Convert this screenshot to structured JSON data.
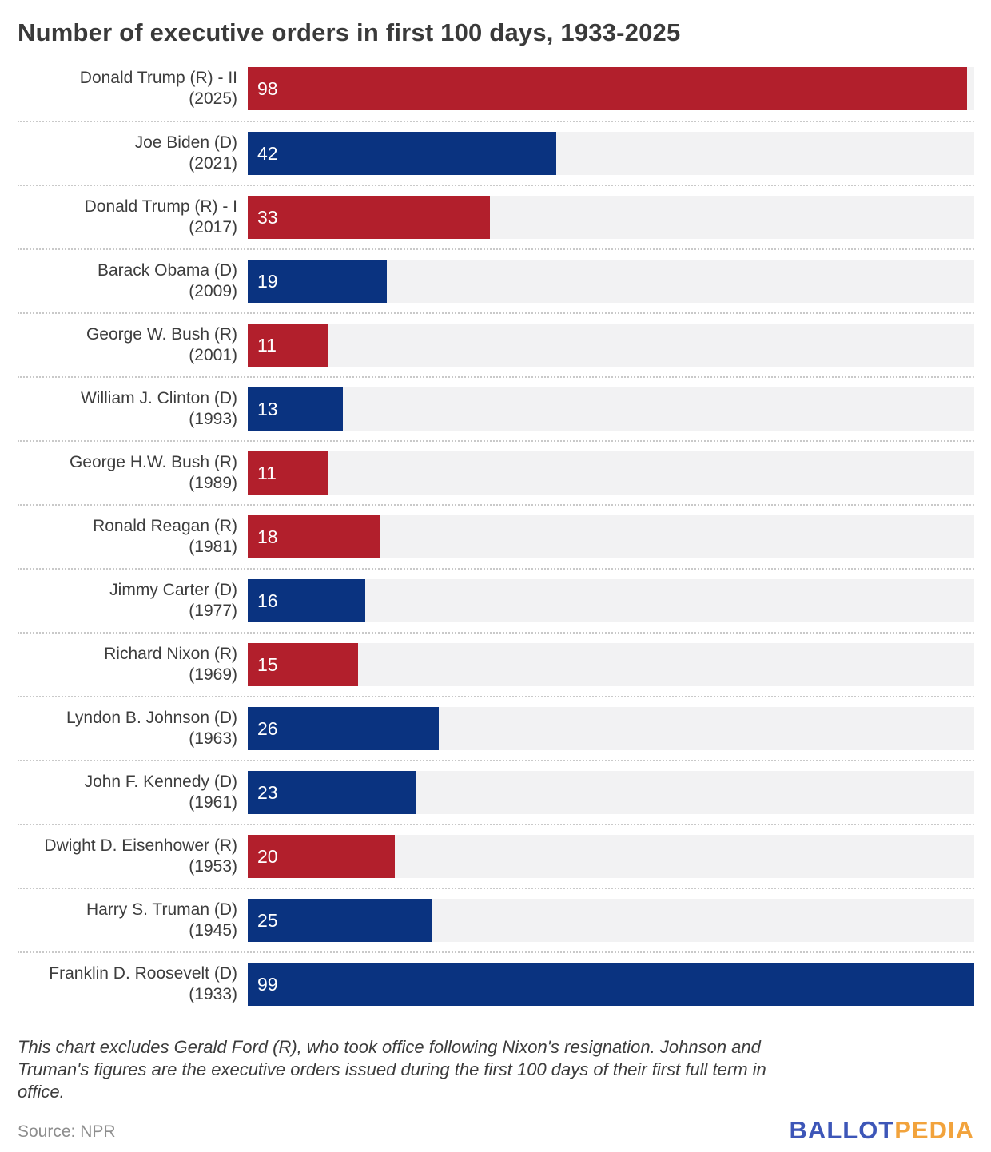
{
  "title": "Number of executive orders in first 100 days, 1933-2025",
  "chart_data": {
    "type": "bar",
    "orientation": "horizontal",
    "title": "Number of executive orders in first 100 days, 1933-2025",
    "xlabel": "",
    "ylabel": "",
    "xlim": [
      0,
      99
    ],
    "grid": false,
    "legend": "none",
    "colors": {
      "republican_bar": "#b21f2c",
      "democrat_bar": "#0a3380",
      "track_background": "#f2f2f3"
    },
    "categories": [
      "Donald Trump (R) - II (2025)",
      "Joe Biden (D) (2021)",
      "Donald Trump (R) - I (2017)",
      "Barack Obama (D) (2009)",
      "George W. Bush (R) (2001)",
      "William J. Clinton (D) (1993)",
      "George H.W. Bush (R) (1989)",
      "Ronald Reagan (R) (1981)",
      "Jimmy Carter (D) (1977)",
      "Richard Nixon (R) (1969)",
      "Lyndon B. Johnson (D) (1963)",
      "John F. Kennedy (D) (1961)",
      "Dwight D. Eisenhower (R) (1953)",
      "Harry S. Truman (D) (1945)",
      "Franklin D. Roosevelt (D) (1933)"
    ],
    "values": [
      98,
      42,
      33,
      19,
      11,
      13,
      11,
      18,
      16,
      15,
      26,
      23,
      20,
      25,
      99
    ],
    "presidents": [
      {
        "name": "Donald Trump (R) - II",
        "year": "(2025)",
        "party": "R",
        "value": 98
      },
      {
        "name": "Joe Biden (D)",
        "year": "(2021)",
        "party": "D",
        "value": 42
      },
      {
        "name": "Donald Trump (R) - I",
        "year": "(2017)",
        "party": "R",
        "value": 33
      },
      {
        "name": "Barack Obama (D)",
        "year": "(2009)",
        "party": "D",
        "value": 19
      },
      {
        "name": "George W. Bush (R)",
        "year": "(2001)",
        "party": "R",
        "value": 11
      },
      {
        "name": "William J. Clinton (D)",
        "year": "(1993)",
        "party": "D",
        "value": 13
      },
      {
        "name": "George H.W. Bush (R)",
        "year": "(1989)",
        "party": "R",
        "value": 11
      },
      {
        "name": "Ronald Reagan (R)",
        "year": "(1981)",
        "party": "R",
        "value": 18
      },
      {
        "name": "Jimmy Carter (D)",
        "year": "(1977)",
        "party": "D",
        "value": 16
      },
      {
        "name": "Richard Nixon (R)",
        "year": "(1969)",
        "party": "R",
        "value": 15
      },
      {
        "name": "Lyndon B. Johnson (D)",
        "year": "(1963)",
        "party": "D",
        "value": 26
      },
      {
        "name": "John F. Kennedy (D)",
        "year": "(1961)",
        "party": "D",
        "value": 23
      },
      {
        "name": "Dwight D. Eisenhower (R)",
        "year": "(1953)",
        "party": "R",
        "value": 20
      },
      {
        "name": "Harry S. Truman (D)",
        "year": "(1945)",
        "party": "D",
        "value": 25
      },
      {
        "name": "Franklin D. Roosevelt (D)",
        "year": "(1933)",
        "party": "D",
        "value": 99
      }
    ]
  },
  "footnote": "This chart excludes Gerald Ford (R), who took office following Nixon's resignation. Johnson and Truman's figures are the executive orders issued during the first 100 days of their first full term in office.",
  "source": "Source: NPR",
  "logo": {
    "ballot": "BALLOT",
    "pedia": "PEDIA"
  }
}
